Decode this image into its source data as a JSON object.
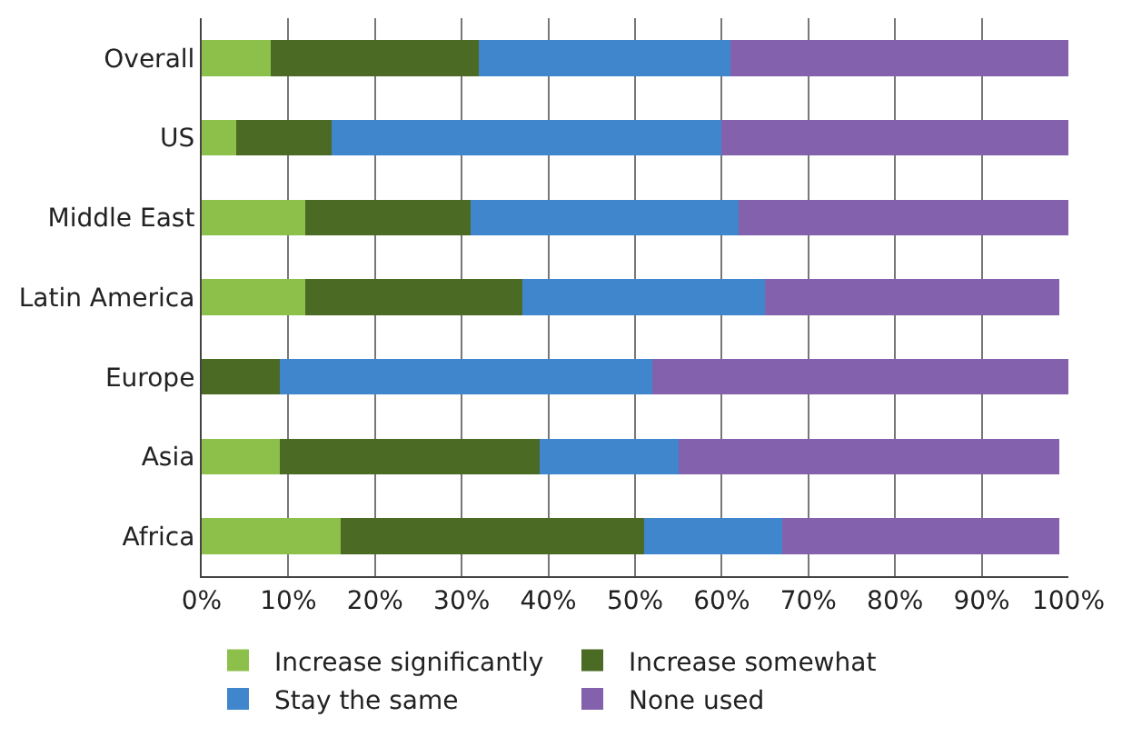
{
  "chart_data": {
    "type": "bar",
    "orientation": "horizontal",
    "stacked": true,
    "categories": [
      "Overall",
      "US",
      "Middle East",
      "Latin America",
      "Europe",
      "Asia",
      "Africa"
    ],
    "series": [
      {
        "name": "Increase significantly",
        "color": "#8dc04a",
        "values": [
          8,
          4,
          12,
          12,
          0,
          9,
          16
        ]
      },
      {
        "name": "Increase somewhat",
        "color": "#4b6a24",
        "values": [
          24,
          11,
          19,
          25,
          9,
          30,
          35
        ]
      },
      {
        "name": "Stay the same",
        "color": "#3f86cd",
        "values": [
          29,
          45,
          31,
          28,
          43,
          16,
          16
        ]
      },
      {
        "name": "None used",
        "color": "#8461ac",
        "values": [
          39,
          40,
          38,
          34,
          48,
          44,
          32
        ]
      }
    ],
    "xlim": [
      0,
      100
    ],
    "xticks": [
      {
        "value": 0,
        "label": "0%"
      },
      {
        "value": 10,
        "label": "10%"
      },
      {
        "value": 20,
        "label": "20%"
      },
      {
        "value": 30,
        "label": "30%"
      },
      {
        "value": 40,
        "label": "40%"
      },
      {
        "value": 50,
        "label": "50%"
      },
      {
        "value": 60,
        "label": "60%"
      },
      {
        "value": 70,
        "label": "70%"
      },
      {
        "value": 80,
        "label": "80%"
      },
      {
        "value": 90,
        "label": "90%"
      },
      {
        "value": 100,
        "label": "100%"
      }
    ],
    "grid": "x",
    "legend": "bottom"
  }
}
